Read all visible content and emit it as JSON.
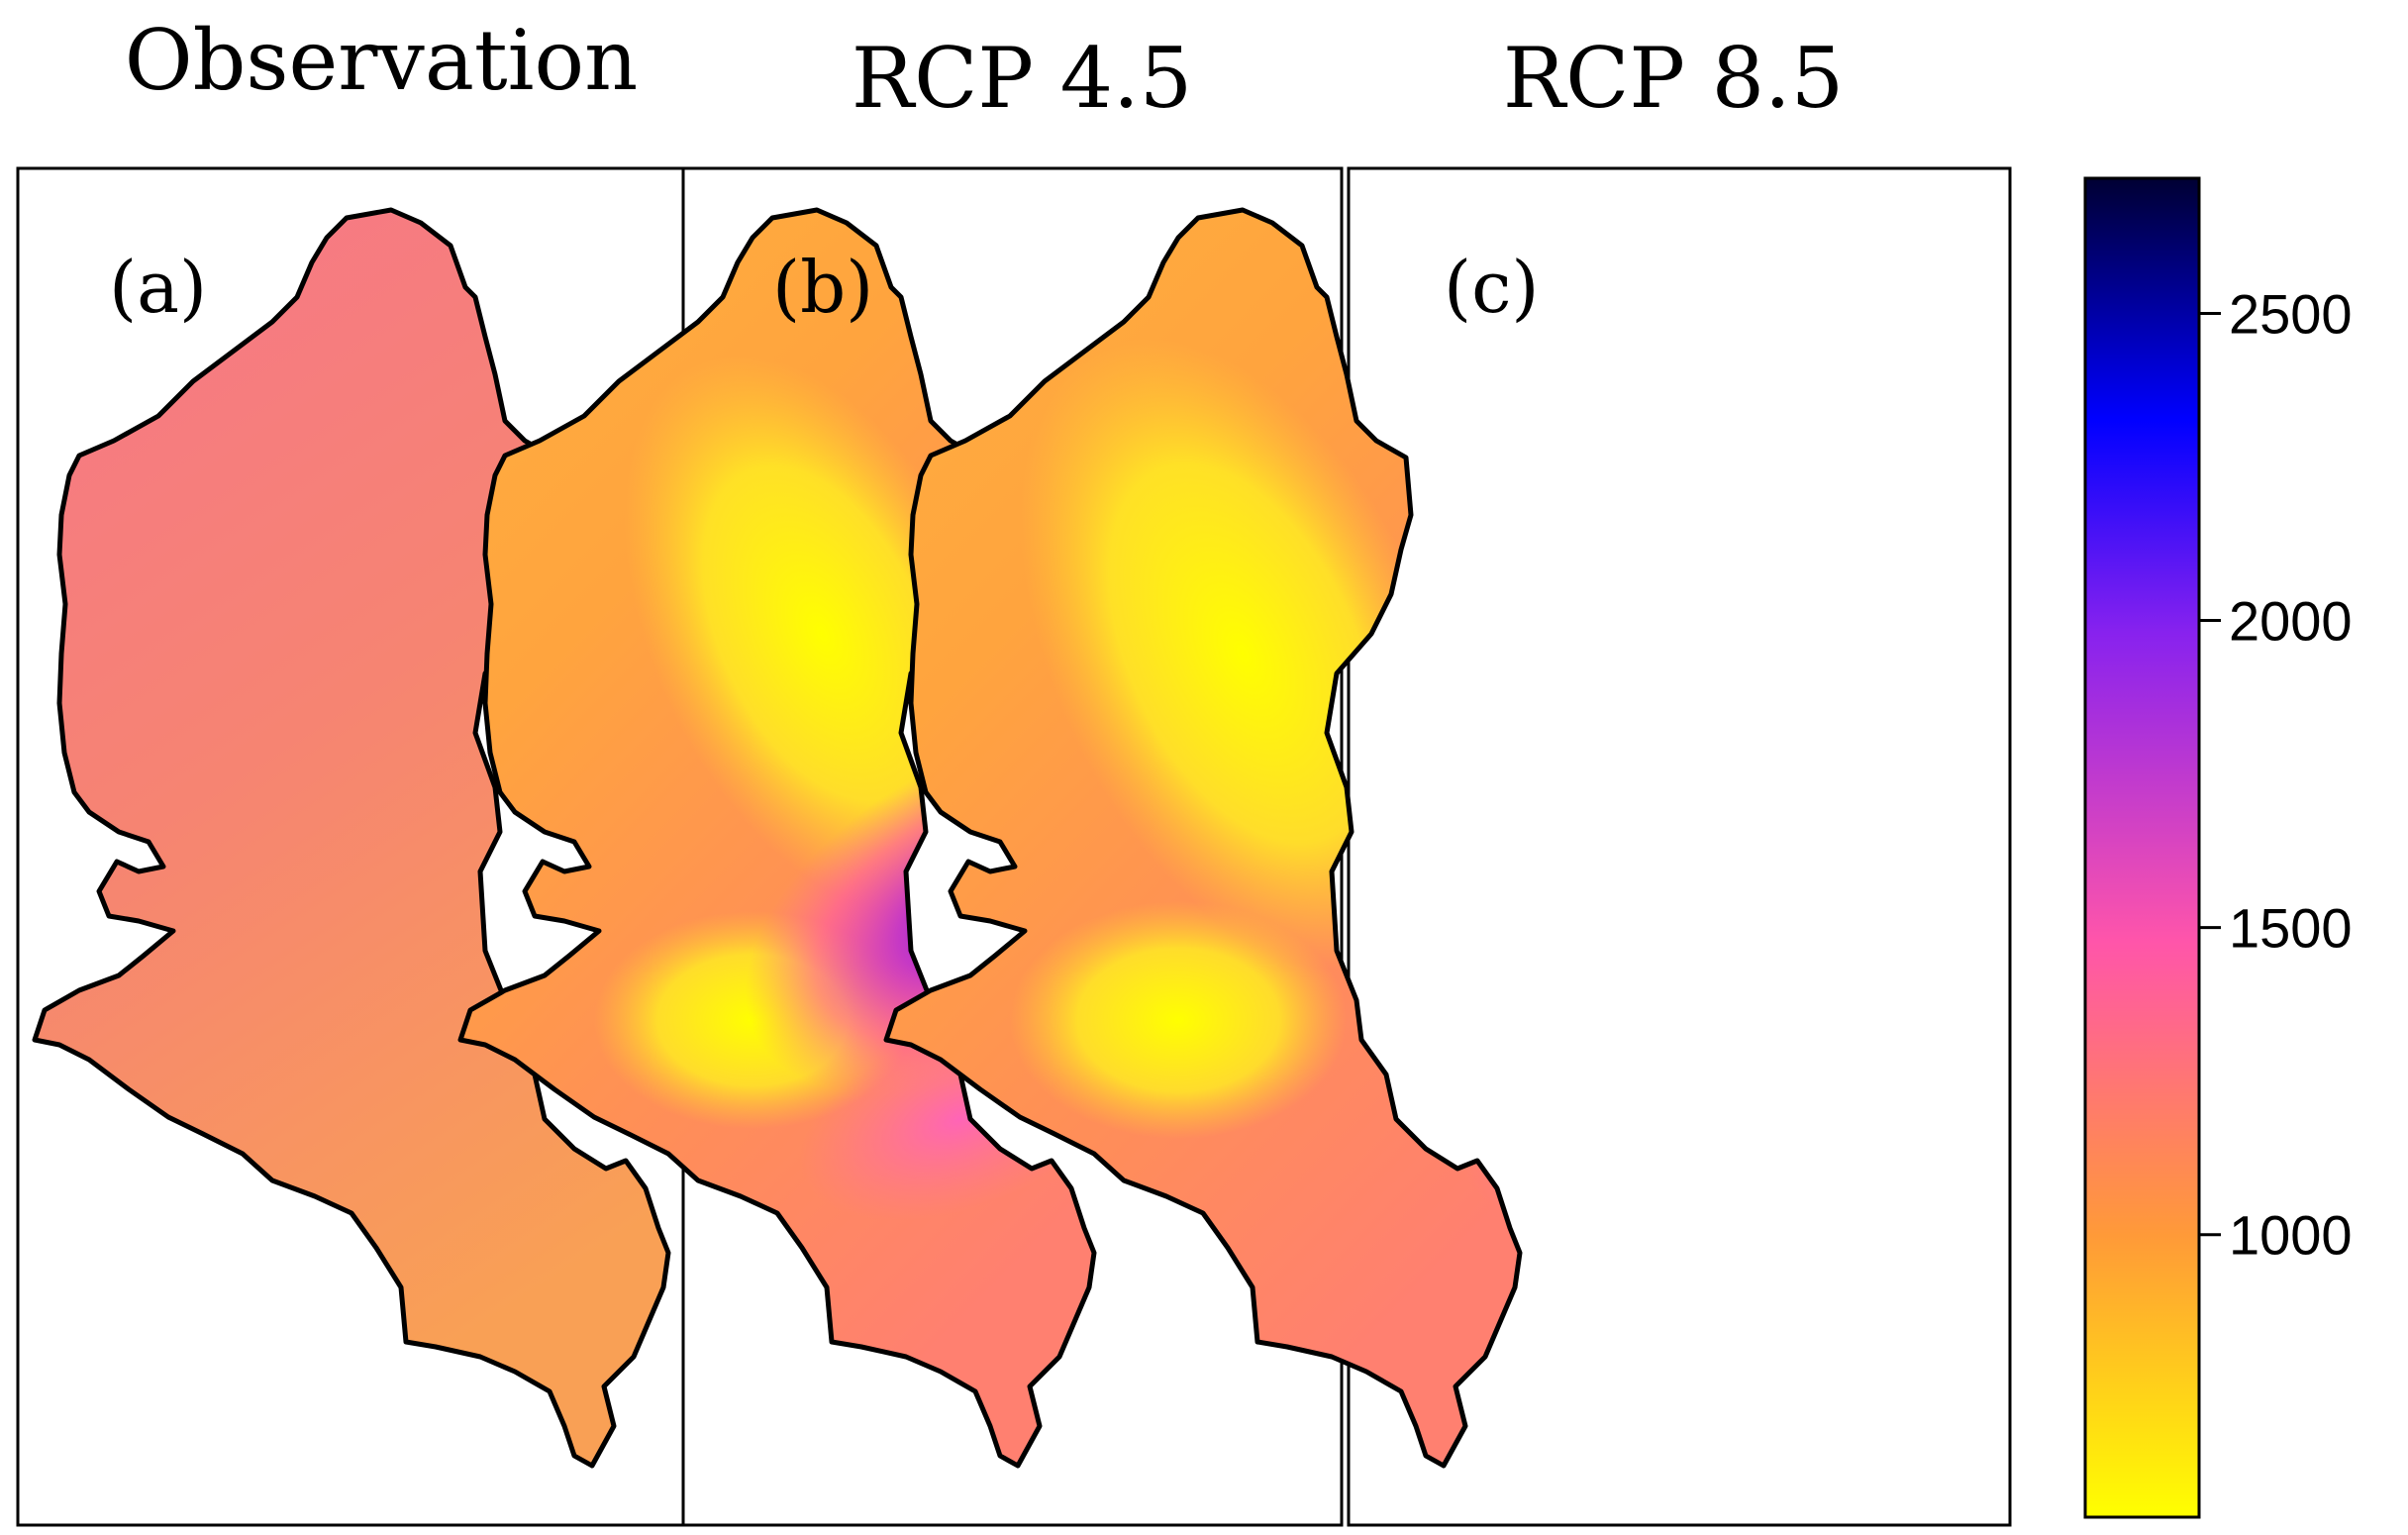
{
  "panels": [
    {
      "id": "obs",
      "title": "Observation",
      "label": "(a)"
    },
    {
      "id": "rcp45",
      "title": "RCP 4.5",
      "label": "(b)"
    },
    {
      "id": "rcp85",
      "title": "RCP 8.5",
      "label": "(c)"
    }
  ],
  "colorbar": {
    "ticks": [
      {
        "value": 1000,
        "label": "1000"
      },
      {
        "value": 1500,
        "label": "1500"
      },
      {
        "value": 2000,
        "label": "2000"
      },
      {
        "value": 2500,
        "label": "2500"
      }
    ],
    "range": [
      540,
      2720
    ],
    "colors": [
      "#ffff00",
      "#ff9933",
      "#ff55aa",
      "#8822ee",
      "#0000ff",
      "#000033"
    ]
  },
  "map_colors": {
    "observation_fill": "#f5866a",
    "yellow": "#ffee10",
    "orange": "#ffa040",
    "pink": "#ff5fb0",
    "purple": "#8a20e0",
    "blue": "#1010e8",
    "navy": "#000040",
    "outline": "#000000"
  }
}
